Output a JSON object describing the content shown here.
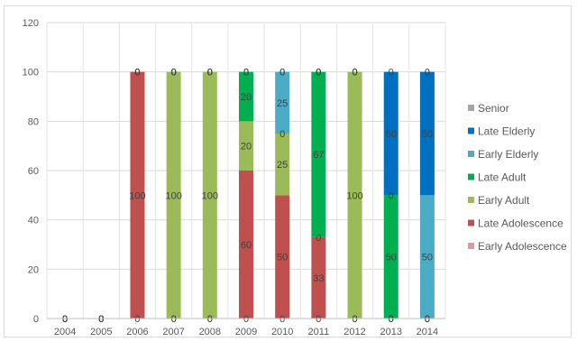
{
  "chart_data": {
    "type": "bar",
    "stacked": true,
    "title": "",
    "xlabel": "",
    "ylabel": "",
    "ylim": [
      0,
      120
    ],
    "yticks": [
      0,
      20,
      40,
      60,
      80,
      100,
      120
    ],
    "grid": true,
    "legend_position": "right",
    "categories": [
      "2004",
      "2005",
      "2006",
      "2007",
      "2008",
      "2009",
      "2010",
      "2011",
      "2012",
      "2013",
      "2014"
    ],
    "series": [
      {
        "name": "Early Adolescence",
        "color": "#e6959a",
        "values": [
          0,
          0,
          0,
          0,
          0,
          0,
          0,
          0,
          0,
          0,
          0
        ]
      },
      {
        "name": "Late Adolescence",
        "color": "#c0504d",
        "values": [
          0,
          0,
          100,
          0,
          0,
          60,
          50,
          33,
          0,
          0,
          0
        ]
      },
      {
        "name": "Early Adult",
        "color": "#9bbb59",
        "values": [
          0,
          0,
          0,
          100,
          100,
          20,
          25,
          0,
          100,
          0,
          0
        ]
      },
      {
        "name": "Late Adult",
        "color": "#00b050",
        "values": [
          0,
          0,
          0,
          0,
          0,
          20,
          0,
          67,
          0,
          50,
          0
        ]
      },
      {
        "name": "Early Elderly",
        "color": "#4bacc6",
        "values": [
          0,
          0,
          0,
          0,
          0,
          0,
          25,
          0,
          0,
          0,
          50
        ]
      },
      {
        "name": "Late Elderly",
        "color": "#0070c0",
        "values": [
          0,
          0,
          0,
          0,
          0,
          0,
          0,
          0,
          0,
          50,
          50
        ]
      },
      {
        "name": "Senior",
        "color": "#a5a5a5",
        "values": [
          0,
          0,
          0,
          0,
          0,
          0,
          0,
          0,
          0,
          0,
          0
        ]
      }
    ],
    "legend_order": [
      "Senior",
      "Late Elderly",
      "Early Elderly",
      "Late Adult",
      "Early Adult",
      "Late Adolescence",
      "Early Adolescence"
    ]
  }
}
